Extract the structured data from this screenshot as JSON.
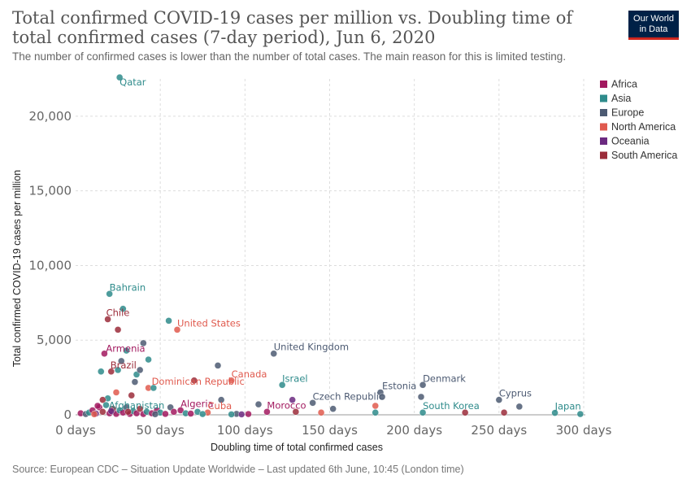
{
  "header": {
    "title": "Total confirmed COVID-19 cases per million vs. Doubling time of total confirmed cases (7-day period), Jun 6, 2020",
    "subtitle": "The number of confirmed cases is lower than the number of total cases. The main reason for this is limited testing.",
    "logo_line1": "Our World",
    "logo_line2": "in Data"
  },
  "footer": {
    "source": "Source: European CDC – Situation Update Worldwide – Last updated 6th June, 10:45 (London time)"
  },
  "chart_data": {
    "type": "scatter",
    "xlabel": "Doubling time of total confirmed cases",
    "ylabel": "Total confirmed COVID-19 cases per million",
    "xlim": [
      0,
      300
    ],
    "ylim": [
      0,
      22500
    ],
    "x_ticks": [
      0,
      50,
      100,
      150,
      200,
      250,
      300
    ],
    "x_tick_labels": [
      "0 days",
      "50 days",
      "100 days",
      "150 days",
      "200 days",
      "250 days",
      "300 days"
    ],
    "y_ticks": [
      0,
      5000,
      10000,
      15000,
      20000
    ],
    "y_tick_labels": [
      "0",
      "5,000",
      "10,000",
      "15,000",
      "20,000"
    ],
    "grid": true,
    "legend_position": "right",
    "series": [
      {
        "name": "Africa",
        "color": "#a2195f"
      },
      {
        "name": "Asia",
        "color": "#2e8b8b"
      },
      {
        "name": "Europe",
        "color": "#4c5a72"
      },
      {
        "name": "North America",
        "color": "#e05a4e"
      },
      {
        "name": "Oceania",
        "color": "#6b2a80"
      },
      {
        "name": "South America",
        "color": "#9b2c3a"
      }
    ],
    "points": [
      {
        "x": 26,
        "y": 22600,
        "series": "Asia",
        "label": "Qatar"
      },
      {
        "x": 20,
        "y": 8100,
        "series": "Asia",
        "label": "Bahrain"
      },
      {
        "x": 19,
        "y": 6400,
        "series": "South America",
        "label": "Chile"
      },
      {
        "x": 55,
        "y": 6300,
        "series": "Asia"
      },
      {
        "x": 60,
        "y": 5700,
        "series": "North America",
        "label": "United States"
      },
      {
        "x": 117,
        "y": 4100,
        "series": "Europe",
        "label": "United Kingdom"
      },
      {
        "x": 17,
        "y": 4100,
        "series": "Africa",
        "label": "Armenia"
      },
      {
        "x": 21,
        "y": 2900,
        "series": "South America",
        "label": "Brazil"
      },
      {
        "x": 43,
        "y": 1800,
        "series": "North America",
        "label": "Dominican Republic"
      },
      {
        "x": 92,
        "y": 2300,
        "series": "North America",
        "label": "Canada"
      },
      {
        "x": 122,
        "y": 2000,
        "series": "Asia",
        "label": "Israel"
      },
      {
        "x": 140,
        "y": 800,
        "series": "Europe",
        "label": "Czech Republic"
      },
      {
        "x": 180,
        "y": 1500,
        "series": "Europe",
        "label": "Estonia"
      },
      {
        "x": 205,
        "y": 2000,
        "series": "Europe",
        "label": "Denmark"
      },
      {
        "x": 250,
        "y": 1000,
        "series": "Europe",
        "label": "Cyprus"
      },
      {
        "x": 205,
        "y": 150,
        "series": "Asia",
        "label": "South Korea"
      },
      {
        "x": 283,
        "y": 130,
        "series": "Asia",
        "label": "Japan"
      },
      {
        "x": 22,
        "y": 200,
        "series": "Asia",
        "label": "Afghanistan"
      },
      {
        "x": 62,
        "y": 300,
        "series": "Africa",
        "label": "Algeria"
      },
      {
        "x": 78,
        "y": 150,
        "series": "North America",
        "label": "Cuba"
      },
      {
        "x": 113,
        "y": 200,
        "series": "Africa",
        "label": "Morocco"
      },
      {
        "x": 28,
        "y": 7100,
        "series": "Asia"
      },
      {
        "x": 25,
        "y": 5700,
        "series": "South America"
      },
      {
        "x": 40,
        "y": 4800,
        "series": "Europe"
      },
      {
        "x": 43,
        "y": 3700,
        "series": "Asia"
      },
      {
        "x": 36,
        "y": 2700,
        "series": "Asia"
      },
      {
        "x": 35,
        "y": 2200,
        "series": "Europe"
      },
      {
        "x": 33,
        "y": 1300,
        "series": "South America"
      },
      {
        "x": 27,
        "y": 3600,
        "series": "Europe"
      },
      {
        "x": 25,
        "y": 3000,
        "series": "Asia"
      },
      {
        "x": 30,
        "y": 4300,
        "series": "Asia"
      },
      {
        "x": 38,
        "y": 3000,
        "series": "Europe"
      },
      {
        "x": 70,
        "y": 2300,
        "series": "South America"
      },
      {
        "x": 84,
        "y": 3300,
        "series": "Europe"
      },
      {
        "x": 15,
        "y": 2900,
        "series": "Asia"
      },
      {
        "x": 19,
        "y": 1100,
        "series": "Asia"
      },
      {
        "x": 24,
        "y": 1500,
        "series": "North America"
      },
      {
        "x": 16,
        "y": 1000,
        "series": "South America"
      },
      {
        "x": 46,
        "y": 1800,
        "series": "Asia"
      },
      {
        "x": 86,
        "y": 1000,
        "series": "Europe"
      },
      {
        "x": 108,
        "y": 700,
        "series": "Europe"
      },
      {
        "x": 128,
        "y": 1000,
        "series": "Oceania"
      },
      {
        "x": 130,
        "y": 200,
        "series": "South America"
      },
      {
        "x": 145,
        "y": 150,
        "series": "North America"
      },
      {
        "x": 152,
        "y": 400,
        "series": "Europe"
      },
      {
        "x": 177,
        "y": 600,
        "series": "North America"
      },
      {
        "x": 177,
        "y": 150,
        "series": "Asia"
      },
      {
        "x": 181,
        "y": 1200,
        "series": "Europe"
      },
      {
        "x": 204,
        "y": 1200,
        "series": "Europe"
      },
      {
        "x": 230,
        "y": 150,
        "series": "South America"
      },
      {
        "x": 253,
        "y": 150,
        "series": "South America"
      },
      {
        "x": 262,
        "y": 550,
        "series": "Europe"
      },
      {
        "x": 298,
        "y": 50,
        "series": "Asia"
      },
      {
        "x": 3,
        "y": 100,
        "series": "Africa"
      },
      {
        "x": 6,
        "y": 50,
        "series": "Europe"
      },
      {
        "x": 8,
        "y": 150,
        "series": "Asia"
      },
      {
        "x": 10,
        "y": 300,
        "series": "Africa"
      },
      {
        "x": 12,
        "y": 80,
        "series": "Oceania"
      },
      {
        "x": 14,
        "y": 500,
        "series": "Africa"
      },
      {
        "x": 16,
        "y": 200,
        "series": "South America"
      },
      {
        "x": 18,
        "y": 650,
        "series": "Asia"
      },
      {
        "x": 20,
        "y": 100,
        "series": "Africa"
      },
      {
        "x": 22,
        "y": 400,
        "series": "South America"
      },
      {
        "x": 24,
        "y": 60,
        "series": "Africa"
      },
      {
        "x": 26,
        "y": 300,
        "series": "Asia"
      },
      {
        "x": 28,
        "y": 150,
        "series": "Africa"
      },
      {
        "x": 30,
        "y": 500,
        "series": "Europe"
      },
      {
        "x": 32,
        "y": 60,
        "series": "Africa"
      },
      {
        "x": 34,
        "y": 250,
        "series": "Asia"
      },
      {
        "x": 36,
        "y": 100,
        "series": "Africa"
      },
      {
        "x": 38,
        "y": 400,
        "series": "South America"
      },
      {
        "x": 40,
        "y": 50,
        "series": "Africa"
      },
      {
        "x": 42,
        "y": 200,
        "series": "Asia"
      },
      {
        "x": 45,
        "y": 100,
        "series": "Africa"
      },
      {
        "x": 48,
        "y": 300,
        "series": "Africa"
      },
      {
        "x": 50,
        "y": 150,
        "series": "Asia"
      },
      {
        "x": 53,
        "y": 60,
        "series": "Africa"
      },
      {
        "x": 56,
        "y": 500,
        "series": "Europe"
      },
      {
        "x": 58,
        "y": 200,
        "series": "Africa"
      },
      {
        "x": 65,
        "y": 100,
        "series": "Asia"
      },
      {
        "x": 68,
        "y": 80,
        "series": "Africa"
      },
      {
        "x": 72,
        "y": 200,
        "series": "Asia"
      },
      {
        "x": 75,
        "y": 50,
        "series": "Asia"
      },
      {
        "x": 95,
        "y": 60,
        "series": "Europe"
      },
      {
        "x": 98,
        "y": 30,
        "series": "Oceania"
      },
      {
        "x": 102,
        "y": 50,
        "series": "Africa"
      },
      {
        "x": 92,
        "y": 30,
        "series": "Asia"
      },
      {
        "x": 11,
        "y": 40,
        "series": "North America"
      },
      {
        "x": 13,
        "y": 600,
        "series": "Africa"
      },
      {
        "x": 21,
        "y": 250,
        "series": "Oceania"
      },
      {
        "x": 31,
        "y": 200,
        "series": "South America"
      },
      {
        "x": 47,
        "y": 40,
        "series": "Europe"
      }
    ]
  }
}
